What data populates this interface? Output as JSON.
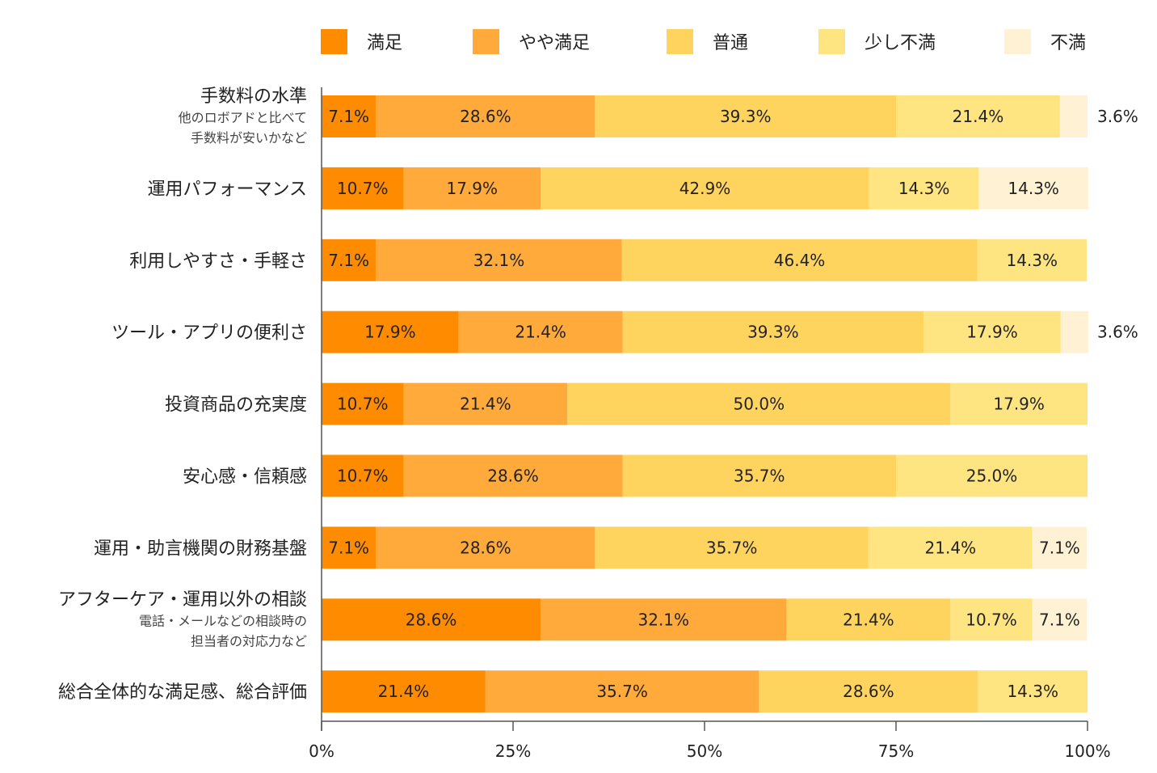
{
  "chart_data": {
    "type": "bar",
    "orientation": "horizontal",
    "stacked": true,
    "xlim": [
      0,
      100
    ],
    "x_ticks": [
      0,
      25,
      50,
      75,
      100
    ],
    "x_tick_labels": [
      "0%",
      "25%",
      "50%",
      "75%",
      "100%"
    ],
    "legend_position": "top",
    "series": [
      {
        "name": "満足",
        "color": "#FF8C00"
      },
      {
        "name": "やや満足",
        "color": "#FFAA3A"
      },
      {
        "name": "普通",
        "color": "#FFD45E"
      },
      {
        "name": "少し不満",
        "color": "#FFE582"
      },
      {
        "name": "不満",
        "color": "#FFF2D4"
      }
    ],
    "categories": [
      {
        "label": "手数料の水準",
        "sublabel": [
          "他のロボアドと比べて",
          "手数料が安いかなど"
        ],
        "values": [
          7.1,
          28.6,
          39.3,
          21.4,
          3.6
        ],
        "labels": [
          "7.1%",
          "28.6%",
          "39.3%",
          "21.4%",
          "3.6%"
        ]
      },
      {
        "label": "運用パフォーマンス",
        "sublabel": [],
        "values": [
          10.7,
          17.9,
          42.9,
          14.3,
          14.3
        ],
        "labels": [
          "10.7%",
          "17.9%",
          "42.9%",
          "14.3%",
          "14.3%"
        ]
      },
      {
        "label": "利用しやすさ・手軽さ",
        "sublabel": [],
        "values": [
          7.1,
          32.1,
          46.4,
          14.3,
          0
        ],
        "labels": [
          "7.1%",
          "32.1%",
          "46.4%",
          "14.3%",
          ""
        ]
      },
      {
        "label": "ツール・アプリの便利さ",
        "sublabel": [],
        "values": [
          17.9,
          21.4,
          39.3,
          17.9,
          3.6
        ],
        "labels": [
          "17.9%",
          "21.4%",
          "39.3%",
          "17.9%",
          "3.6%"
        ]
      },
      {
        "label": "投資商品の充実度",
        "sublabel": [],
        "values": [
          10.7,
          21.4,
          50.0,
          17.9,
          0
        ],
        "labels": [
          "10.7%",
          "21.4%",
          "50.0%",
          "17.9%",
          ""
        ]
      },
      {
        "label": "安心感・信頼感",
        "sublabel": [],
        "values": [
          10.7,
          28.6,
          35.7,
          25.0,
          0
        ],
        "labels": [
          "10.7%",
          "28.6%",
          "35.7%",
          "25.0%",
          ""
        ]
      },
      {
        "label": "運用・助言機関の財務基盤",
        "sublabel": [],
        "values": [
          7.1,
          28.6,
          35.7,
          21.4,
          7.1
        ],
        "labels": [
          "7.1%",
          "28.6%",
          "35.7%",
          "21.4%",
          "7.1%"
        ]
      },
      {
        "label": "アフターケア・運用以外の相談",
        "sublabel": [
          "電話・メールなどの相談時の",
          "担当者の対応力など"
        ],
        "values": [
          28.6,
          32.1,
          21.4,
          10.7,
          7.1
        ],
        "labels": [
          "28.6%",
          "32.1%",
          "21.4%",
          "10.7%",
          "7.1%"
        ]
      },
      {
        "label": "総合全体的な満足感、総合評価",
        "sublabel": [],
        "values": [
          21.4,
          35.7,
          28.6,
          14.3,
          0
        ],
        "labels": [
          "21.4%",
          "35.7%",
          "28.6%",
          "14.3%",
          ""
        ]
      }
    ]
  }
}
